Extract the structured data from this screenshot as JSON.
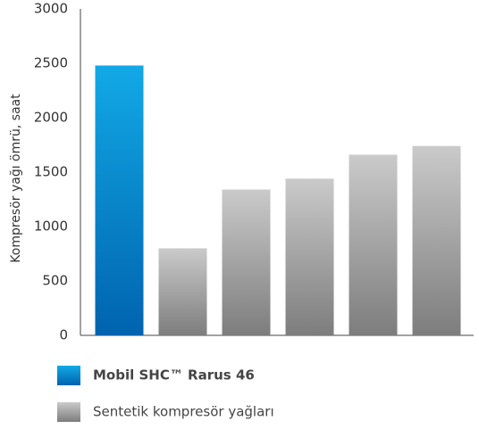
{
  "chart_data": {
    "type": "bar",
    "y_label": "Kompresör yağı ömrü, saat",
    "categories": [
      null,
      null,
      null,
      null,
      null,
      null
    ],
    "series": [
      {
        "name": "Mobil SHC™ Rarus 46",
        "color": [
          "#12a9e6",
          "#0063af"
        ],
        "values": [
          2480,
          null,
          null,
          null,
          null,
          null
        ]
      },
      {
        "name": "Sentetik kompresör yağları",
        "color": [
          "#cacaca",
          "#7d7d7d"
        ],
        "values": [
          null,
          800,
          1340,
          1440,
          1660,
          1740
        ]
      }
    ],
    "ylim": [
      0,
      3000
    ],
    "yticks": [
      0,
      500,
      1000,
      1500,
      2000,
      2500,
      3000
    ],
    "grid": false
  }
}
